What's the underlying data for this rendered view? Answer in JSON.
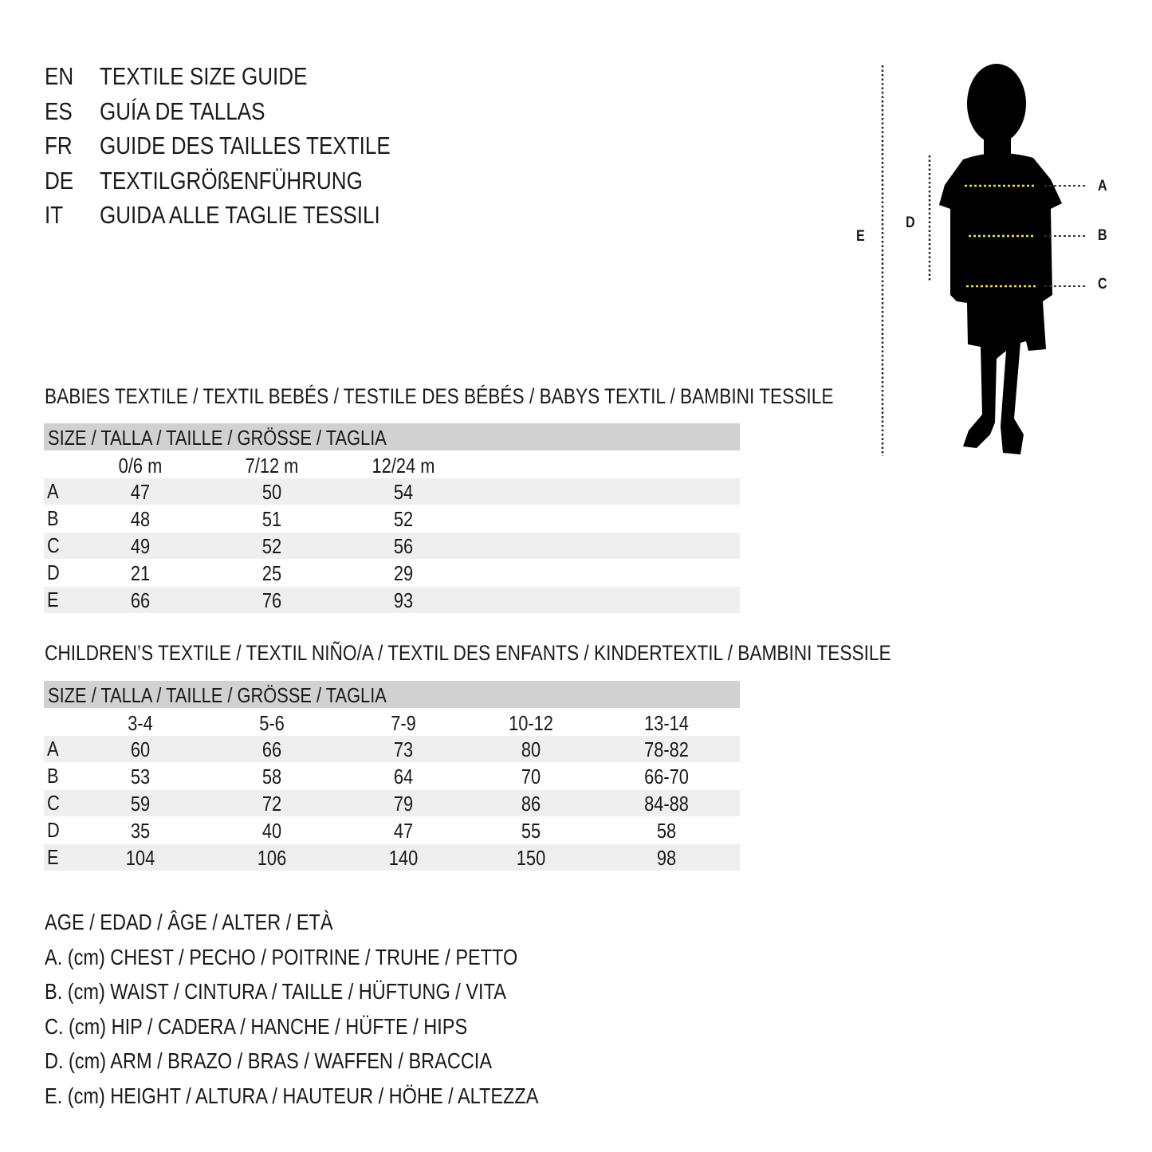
{
  "titles": [
    {
      "code": "EN",
      "text": "TEXTILE SIZE GUIDE"
    },
    {
      "code": "ES",
      "text": "GUÍA DE TALLAS"
    },
    {
      "code": "FR",
      "text": "GUIDE DES TAILLES TEXTILE"
    },
    {
      "code": "DE",
      "text": "TEXTILGRÖßENFÜHRUNG"
    },
    {
      "code": "IT",
      "text": "GUIDA ALLE TAGLIE TESSILI"
    }
  ],
  "figure": {
    "labels": {
      "a": "A",
      "b": "B",
      "c": "C",
      "d": "D",
      "e": "E"
    },
    "measure_line_color": "#f2e33a"
  },
  "babies": {
    "heading": "BABIES TEXTILE / TEXTIL BEBÉS / TESTILE DES BÉBÉS / BABYS TEXTIL / BAMBINI TESSILE",
    "size_header": "SIZE / TALLA / TAILLE / GRÖSSE / TAGLIA",
    "columns": [
      "0/6 m",
      "7/12 m",
      "12/24 m"
    ],
    "rows": [
      {
        "label": "A",
        "values": [
          "47",
          "50",
          "54"
        ]
      },
      {
        "label": "B",
        "values": [
          "48",
          "51",
          "52"
        ]
      },
      {
        "label": "C",
        "values": [
          "49",
          "52",
          "56"
        ]
      },
      {
        "label": "D",
        "values": [
          "21",
          "25",
          "29"
        ]
      },
      {
        "label": "E",
        "values": [
          "66",
          "76",
          "93"
        ]
      }
    ]
  },
  "children": {
    "heading": "CHILDREN’S TEXTILE / TEXTIL NIÑO/A / TEXTIL DES ENFANTS / KINDERTEXTIL / BAMBINI TESSILE",
    "size_header": "SIZE / TALLA / TAILLE / GRÖSSE / TAGLIA",
    "columns": [
      "3-4",
      "5-6",
      "7-9",
      "10-12",
      "13-14"
    ],
    "rows": [
      {
        "label": "A",
        "values": [
          "60",
          "66",
          "73",
          "80",
          "78-82"
        ]
      },
      {
        "label": "B",
        "values": [
          "53",
          "58",
          "64",
          "70",
          "66-70"
        ]
      },
      {
        "label": "C",
        "values": [
          "59",
          "72",
          "79",
          "86",
          "84-88"
        ]
      },
      {
        "label": "D",
        "values": [
          "35",
          "40",
          "47",
          "55",
          "58"
        ]
      },
      {
        "label": "E",
        "values": [
          "104",
          "106",
          "140",
          "150",
          "98"
        ]
      }
    ]
  },
  "legend": [
    "AGE / EDAD / ÂGE / ALTER / ETÀ",
    "A. (cm) CHEST / PECHO / POITRINE / TRUHE / PETTO",
    "B. (cm) WAIST / CINTURA / TAILLE / HÜFTUNG / VITA",
    "C. (cm) HIP / CADERA / HANCHE / HÜFTE / HIPS",
    "D. (cm) ARM / BRAZO / BRAS / WAFFEN / BRACCIA",
    "E. (cm) HEIGHT / ALTURA / HAUTEUR / HÖHE / ALTEZZA"
  ]
}
